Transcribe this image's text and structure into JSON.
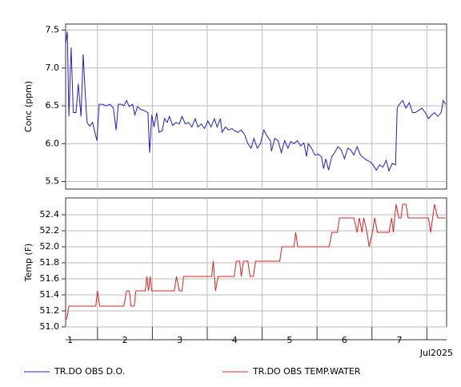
{
  "chart_data": [
    {
      "type": "line",
      "ylabel": "Conc (ppm)",
      "xlim": [
        0.92,
        7.86
      ],
      "ylim": [
        5.4,
        7.58
      ],
      "xticks": [
        1,
        2,
        3,
        4,
        5,
        6,
        7
      ],
      "yticks": [
        5.5,
        {
          "value": 6,
          "label": "6.0"
        },
        6.5,
        {
          "value": 7,
          "label": "7.0"
        },
        7.5
      ],
      "grid": true,
      "x": [
        0.92,
        0.95,
        0.98,
        1.02,
        1.06,
        1.11,
        1.15,
        1.2,
        1.24,
        1.28,
        1.31,
        1.36,
        1.41,
        1.49,
        1.53,
        1.59,
        1.66,
        1.73,
        1.79,
        1.84,
        1.88,
        1.94,
        1.98,
        2.03,
        2.08,
        2.14,
        2.18,
        2.23,
        2.29,
        2.34,
        2.42,
        2.45,
        2.49,
        2.53,
        2.58,
        2.62,
        2.68,
        2.72,
        2.77,
        2.81,
        2.87,
        2.93,
        2.99,
        3.04,
        3.1,
        3.16,
        3.22,
        3.28,
        3.33,
        3.39,
        3.45,
        3.51,
        3.57,
        3.63,
        3.68,
        3.74,
        3.77,
        3.83,
        3.89,
        3.95,
        4.0,
        4.06,
        4.12,
        4.18,
        4.24,
        4.3,
        4.35,
        4.41,
        4.47,
        4.53,
        4.59,
        4.65,
        4.67,
        4.73,
        4.79,
        4.85,
        4.91,
        4.97,
        5.02,
        5.08,
        5.14,
        5.2,
        5.26,
        5.31,
        5.34,
        5.4,
        5.46,
        5.52,
        5.58,
        5.62,
        5.66,
        5.71,
        5.77,
        5.82,
        5.88,
        5.94,
        6.0,
        6.06,
        6.11,
        6.17,
        6.23,
        6.29,
        6.35,
        6.41,
        6.47,
        6.52,
        6.58,
        6.64,
        6.7,
        6.76,
        6.81,
        6.87,
        6.93,
        6.96,
        7.0,
        7.06,
        7.12,
        7.18,
        7.24,
        7.29,
        7.35,
        7.41,
        7.47,
        7.53,
        7.59,
        7.64,
        7.7,
        7.76,
        7.8,
        7.84
      ],
      "series": [
        {
          "name": "TR.DO OBS D.O.",
          "color": "#1f1fc8",
          "values": [
            7.32,
            7.48,
            6.36,
            7.27,
            6.41,
            6.41,
            6.79,
            6.36,
            7.18,
            6.63,
            6.28,
            6.23,
            6.28,
            6.04,
            6.52,
            6.52,
            6.5,
            6.52,
            6.47,
            6.18,
            6.52,
            6.52,
            6.5,
            6.57,
            6.49,
            6.52,
            6.38,
            6.49,
            6.45,
            6.44,
            6.41,
            5.88,
            6.38,
            6.22,
            6.41,
            6.15,
            6.17,
            6.33,
            6.28,
            6.36,
            6.24,
            6.28,
            6.26,
            6.36,
            6.26,
            6.28,
            6.22,
            6.33,
            6.22,
            6.26,
            6.2,
            6.3,
            6.22,
            6.33,
            6.22,
            6.33,
            6.15,
            6.22,
            6.18,
            6.2,
            6.17,
            6.15,
            6.18,
            6.12,
            6.0,
            5.94,
            6.07,
            5.94,
            6.0,
            6.18,
            6.1,
            6.04,
            5.9,
            6.07,
            6.04,
            5.88,
            6.04,
            5.94,
            6.03,
            6.0,
            6.04,
            5.97,
            6.01,
            5.83,
            6.0,
            5.94,
            5.85,
            5.86,
            5.83,
            5.67,
            5.8,
            5.65,
            5.83,
            5.88,
            5.96,
            5.92,
            5.8,
            5.94,
            5.92,
            5.85,
            5.96,
            5.85,
            5.81,
            5.78,
            5.76,
            5.72,
            5.65,
            5.72,
            5.69,
            5.78,
            5.64,
            5.74,
            5.72,
            6.47,
            6.52,
            6.57,
            6.47,
            6.54,
            6.41,
            6.41,
            6.44,
            6.47,
            6.41,
            6.33,
            6.38,
            6.41,
            6.36,
            6.41,
            6.57,
            6.52
          ]
        }
      ]
    },
    {
      "type": "line",
      "ylabel": "Temp (F)",
      "xlabel": "Jul2025",
      "xlim": [
        0.92,
        7.86
      ],
      "ylim": [
        51.0,
        52.61
      ],
      "xticks": [
        1,
        2,
        3,
        4,
        5,
        6,
        7
      ],
      "yticks": [
        {
          "value": 51,
          "label": "51.0"
        },
        51.2,
        51.4,
        51.6,
        51.8,
        {
          "value": 52,
          "label": "52.0"
        },
        52.2,
        52.4
      ],
      "grid": true,
      "x": [
        0.92,
        0.95,
        0.98,
        1.47,
        1.5,
        1.54,
        1.98,
        2.03,
        2.08,
        2.11,
        2.17,
        2.2,
        2.37,
        2.4,
        2.43,
        2.46,
        2.49,
        2.9,
        2.94,
        2.99,
        3.04,
        3.07,
        3.58,
        3.61,
        3.65,
        3.7,
        3.99,
        4.03,
        4.09,
        4.12,
        4.16,
        4.24,
        4.28,
        4.34,
        4.38,
        4.82,
        4.86,
        5.08,
        5.11,
        5.15,
        5.72,
        5.77,
        5.87,
        5.91,
        6.17,
        6.23,
        6.27,
        6.32,
        6.35,
        6.41,
        6.45,
        6.51,
        6.55,
        6.6,
        6.81,
        6.86,
        6.89,
        6.94,
        6.99,
        7.03,
        7.06,
        7.12,
        7.16,
        7.53,
        7.57,
        7.64,
        7.7,
        7.84
      ],
      "series": [
        {
          "name": "TR.DO OBS TEMP.WATER",
          "color": "#e02020",
          "values": [
            51.08,
            51.13,
            51.26,
            51.26,
            51.45,
            51.26,
            51.26,
            51.45,
            51.45,
            51.26,
            51.26,
            51.45,
            51.45,
            51.63,
            51.45,
            51.63,
            51.45,
            51.45,
            51.63,
            51.45,
            51.45,
            51.63,
            51.63,
            51.82,
            51.45,
            51.63,
            51.63,
            51.82,
            51.82,
            51.63,
            51.82,
            51.82,
            51.63,
            51.63,
            51.82,
            51.82,
            52.0,
            52.0,
            52.18,
            52.0,
            52.0,
            52.18,
            52.18,
            52.36,
            52.36,
            52.18,
            52.36,
            52.18,
            52.36,
            52.18,
            52.0,
            52.18,
            52.36,
            52.18,
            52.18,
            52.36,
            52.18,
            52.53,
            52.36,
            52.36,
            52.53,
            52.53,
            52.36,
            52.36,
            52.18,
            52.53,
            52.36,
            52.36
          ]
        }
      ]
    }
  ]
}
